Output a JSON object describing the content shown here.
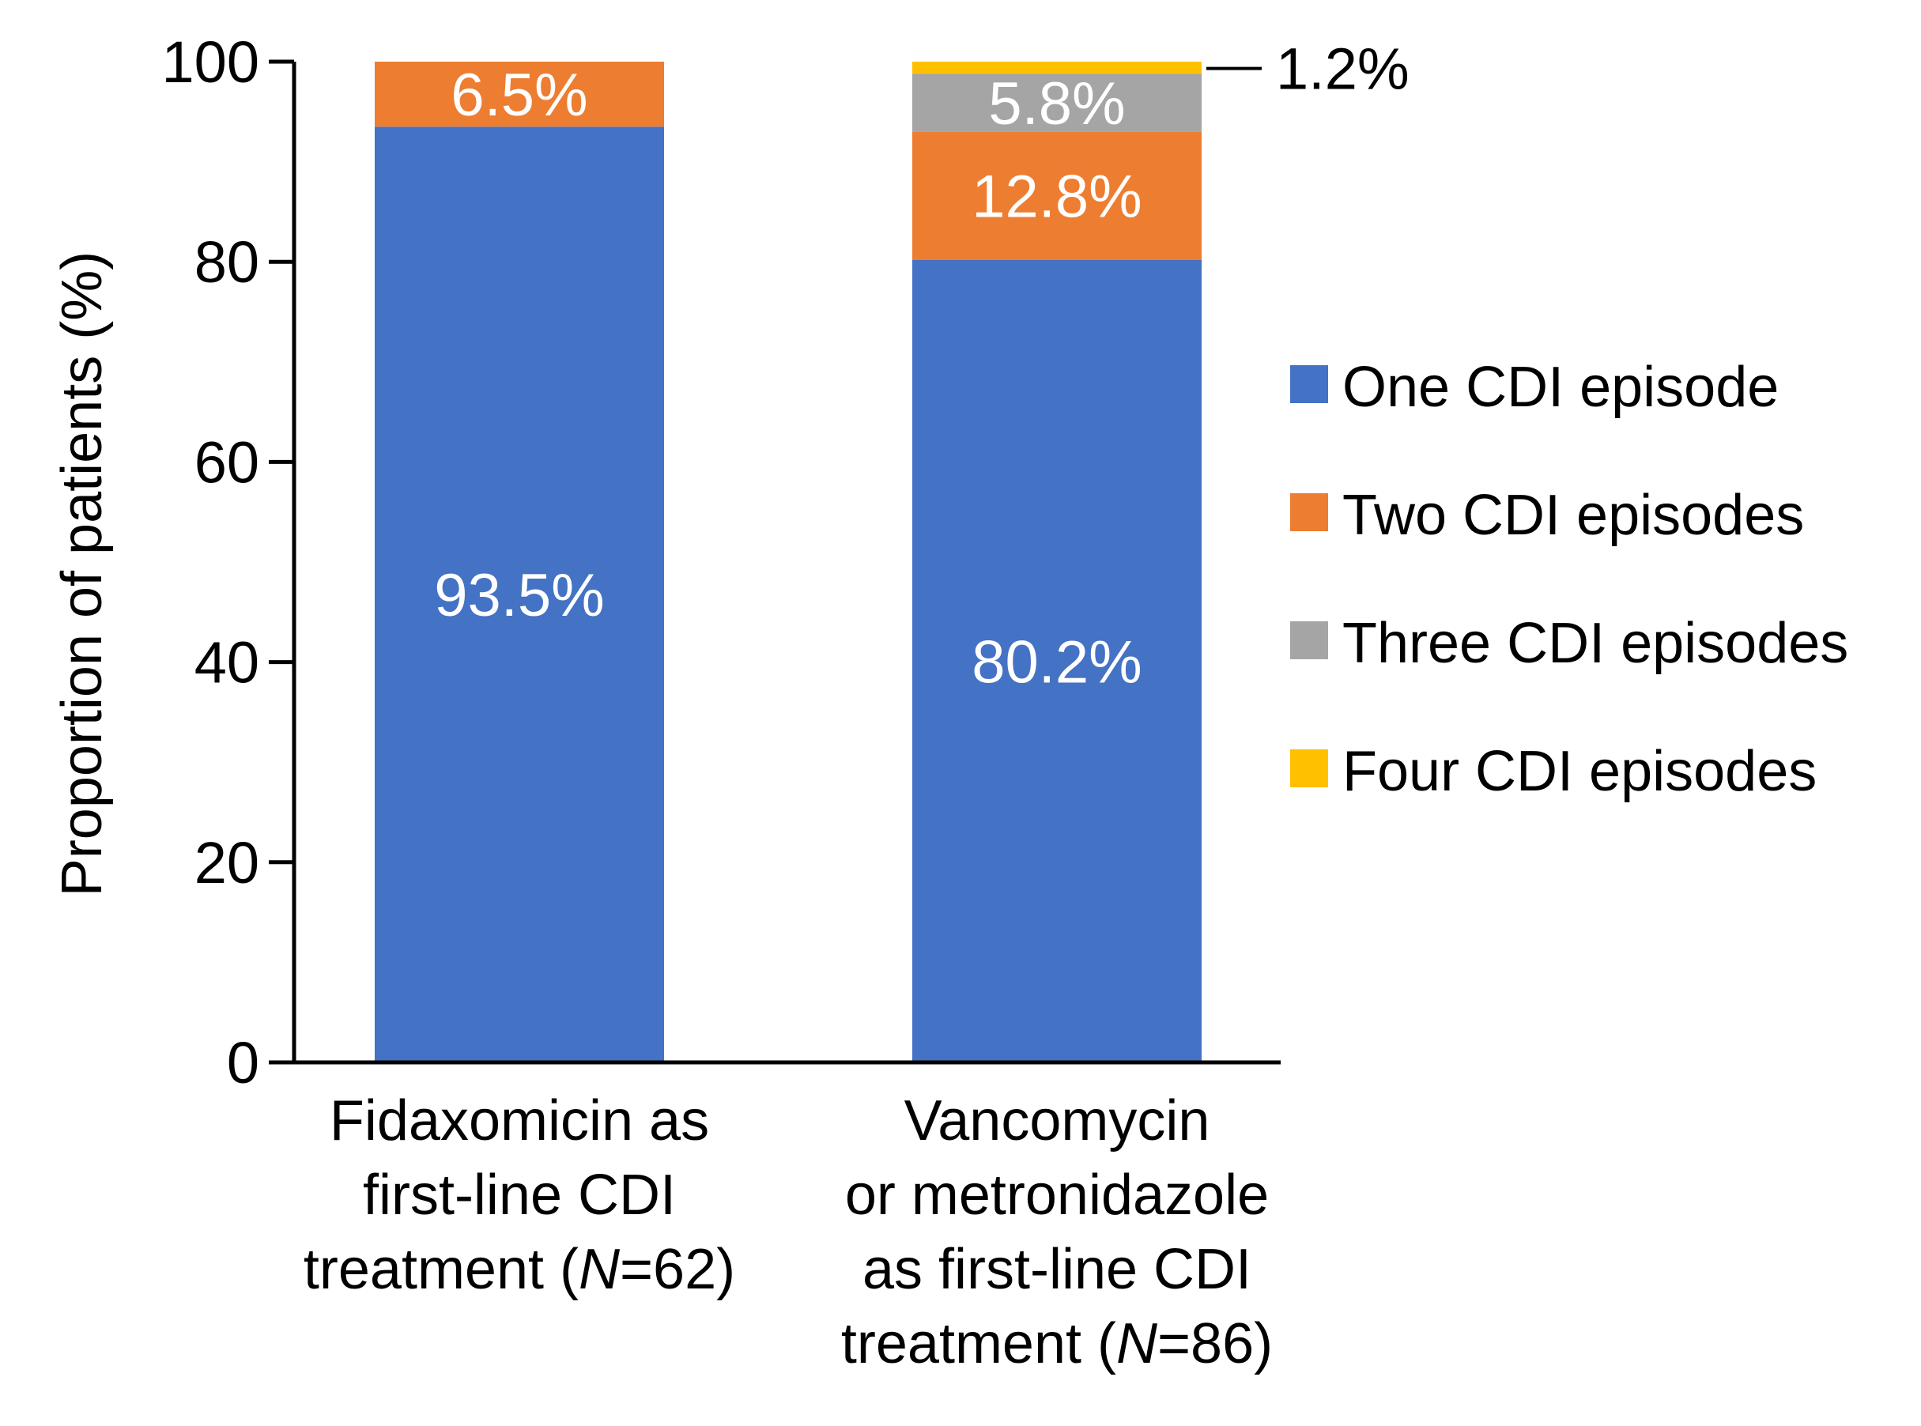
{
  "chart_data": {
    "type": "bar",
    "stacked": true,
    "ylabel": "Proportion of patients (%)",
    "xlabel": "",
    "ylim": [
      0,
      100
    ],
    "yticks": [
      0,
      20,
      40,
      60,
      80,
      100
    ],
    "grid": false,
    "legend_position": "right",
    "categories": [
      {
        "lines": [
          [
            {
              "text": "Fidaxomicin as"
            }
          ],
          [
            {
              "text": "first-line CDI"
            }
          ],
          [
            {
              "text": "treatment ("
            },
            {
              "text": "N",
              "italic": true
            },
            {
              "text": "=62)"
            }
          ]
        ]
      },
      {
        "lines": [
          [
            {
              "text": "Vancomycin"
            }
          ],
          [
            {
              "text": "or metronidazole"
            }
          ],
          [
            {
              "text": "as first-line CDI"
            }
          ],
          [
            {
              "text": "treatment ("
            },
            {
              "text": "N",
              "italic": true
            },
            {
              "text": "=86)"
            }
          ]
        ]
      }
    ],
    "series": [
      {
        "name": "One CDI episode",
        "color": "#4472C4",
        "values": [
          93.5,
          80.2
        ],
        "labels": [
          "93.5%",
          "80.2%"
        ]
      },
      {
        "name": "Two CDI episodes",
        "color": "#ED7D31",
        "values": [
          6.5,
          12.8
        ],
        "labels": [
          "6.5%",
          "12.8%"
        ]
      },
      {
        "name": "Three CDI episodes",
        "color": "#A5A5A5",
        "values": [
          0,
          5.8
        ],
        "labels": [
          "",
          "5.8%"
        ]
      },
      {
        "name": "Four CDI episodes",
        "color": "#FFC000",
        "values": [
          0,
          1.2
        ],
        "labels": [
          "",
          ""
        ]
      }
    ],
    "callouts": [
      {
        "category_index": 1,
        "series_index": 3,
        "text": "1.2%"
      }
    ]
  }
}
